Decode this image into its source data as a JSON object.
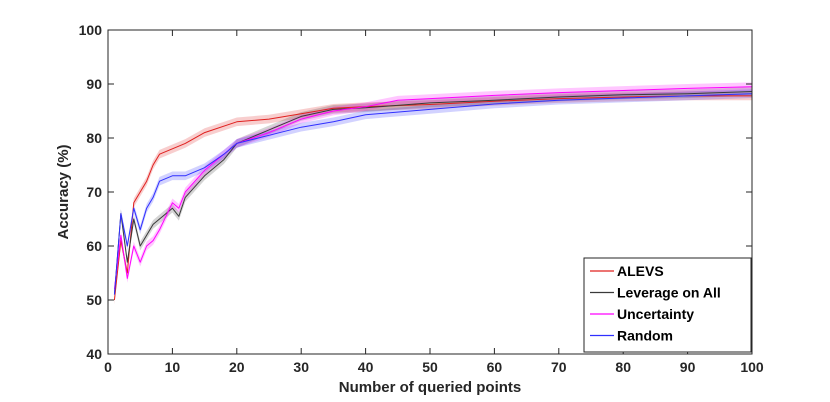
{
  "chart_data": {
    "type": "line",
    "xlabel": "Number of queried points",
    "ylabel": "Accuracy (%)",
    "xlim": [
      0,
      100
    ],
    "ylim": [
      40,
      100
    ],
    "xticks": [
      0,
      10,
      20,
      30,
      40,
      50,
      60,
      70,
      80,
      90,
      100
    ],
    "yticks": [
      40,
      50,
      60,
      70,
      80,
      90,
      100
    ],
    "grid": false,
    "legend_position": "bottom-right",
    "series": [
      {
        "name": "ALEVS",
        "color": "#e0201f",
        "x": [
          1,
          2,
          3,
          4,
          5,
          6,
          7,
          8,
          10,
          12,
          15,
          20,
          25,
          30,
          35,
          40,
          50,
          60,
          70,
          80,
          90,
          100
        ],
        "values": [
          50,
          61,
          55,
          68,
          70,
          72,
          75,
          77,
          78,
          79,
          81,
          83,
          83.5,
          84.5,
          85.5,
          85.8,
          86.2,
          86.8,
          87.3,
          87.6,
          87.8,
          87.8
        ],
        "band": 0.8
      },
      {
        "name": "Leverage on All",
        "color": "#3a3a3a",
        "x": [
          1,
          2,
          3,
          4,
          5,
          6,
          7,
          8,
          10,
          11,
          12,
          15,
          18,
          20,
          25,
          30,
          35,
          40,
          50,
          60,
          70,
          80,
          90,
          100
        ],
        "values": [
          51,
          66,
          57,
          65,
          60,
          62,
          64,
          65,
          67,
          65.5,
          69,
          73,
          76,
          79,
          81.5,
          84,
          85.3,
          85.6,
          86.5,
          87,
          87.6,
          88,
          88.2,
          88.6
        ],
        "band": 0.8
      },
      {
        "name": "Uncertainty",
        "color": "#ff00ff",
        "x": [
          1,
          2,
          3,
          4,
          5,
          6,
          7,
          8,
          10,
          11,
          12,
          15,
          18,
          20,
          25,
          30,
          35,
          40,
          45,
          50,
          60,
          70,
          80,
          90,
          100
        ],
        "values": [
          52,
          62,
          54,
          60,
          57,
          60,
          61,
          63,
          68,
          67,
          70,
          74,
          77,
          79,
          81,
          83.5,
          85,
          85.8,
          87,
          87.3,
          87.9,
          88.4,
          88.8,
          89.2,
          89.5
        ],
        "band": 0.8
      },
      {
        "name": "Random",
        "color": "#3030ff",
        "x": [
          1,
          2,
          3,
          4,
          5,
          6,
          7,
          8,
          10,
          12,
          15,
          18,
          20,
          25,
          30,
          35,
          40,
          50,
          60,
          70,
          80,
          90,
          100
        ],
        "values": [
          51,
          66,
          60,
          67,
          63,
          67,
          69,
          72,
          73,
          73,
          74.5,
          77,
          79,
          80.5,
          82,
          83,
          84.3,
          85.3,
          86.3,
          87,
          87.4,
          87.8,
          88.2
        ],
        "band": 0.8
      }
    ]
  }
}
